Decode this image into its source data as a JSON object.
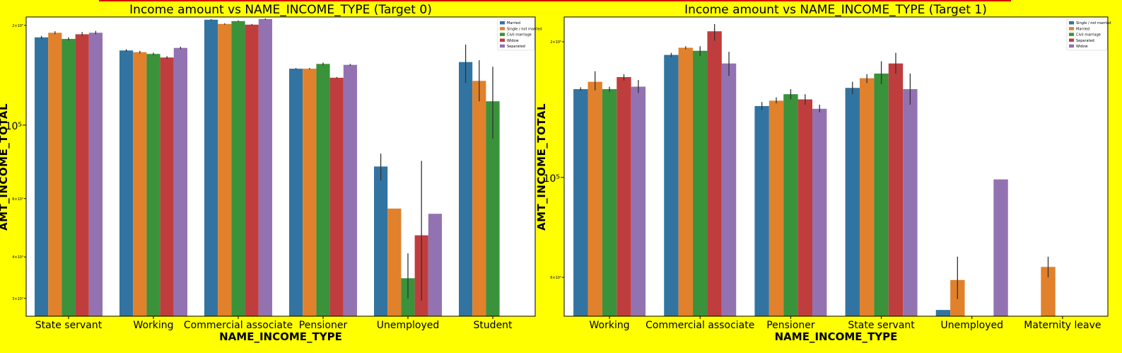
{
  "colors": {
    "palette": [
      "#3274a1",
      "#e1812c",
      "#3a923a",
      "#c03d3e",
      "#9372b2"
    ],
    "background": "#ffff00",
    "plot_bg": "#ffffff",
    "errbar": "#333333"
  },
  "chart_data": [
    {
      "type": "bar",
      "title": "Income amount vs NAME_INCOME_TYPE (Target 0)",
      "xlabel": "NAME_INCOME_TYPE",
      "ylabel": "AMT_INCOME_TOTAL",
      "yscale": "log",
      "ylim": [
        26500,
        212000
      ],
      "yticks": [
        {
          "value": 200000,
          "label": "2×10⁵",
          "major": false
        },
        {
          "value": 100000,
          "label": "10⁵",
          "major": true
        },
        {
          "value": 60000,
          "label": "6×10⁴",
          "major": false
        },
        {
          "value": 40000,
          "label": "4×10⁴",
          "major": false
        },
        {
          "value": 30000,
          "label": "3×10⁴",
          "major": false
        }
      ],
      "legend_position": "top-right",
      "grid": false,
      "categories": [
        "State servant",
        "Working",
        "Commercial associate",
        "Pensioner",
        "Unemployed",
        "Student"
      ],
      "series": [
        {
          "name": "Married",
          "values": [
            184000,
            168000,
            208000,
            148000,
            75000,
            155000
          ],
          "err": [
            [
              182000,
              186000
            ],
            [
              166500,
              169500
            ],
            [
              207000,
              209000
            ],
            [
              147300,
              148700
            ],
            [
              68000,
              82000
            ],
            [
              134000,
              175000
            ]
          ]
        },
        {
          "name": "Single / not married",
          "values": [
            190000,
            166000,
            202000,
            148000,
            56000,
            136000
          ],
          "err": [
            [
              188000,
              192000
            ],
            [
              164500,
              167500
            ],
            [
              201000,
              203000
            ],
            [
              147300,
              148700
            ],
            null,
            [
              118000,
              157000
            ]
          ]
        },
        {
          "name": "Civil marriage",
          "values": [
            182000,
            164000,
            206000,
            153000,
            34500,
            118000
          ],
          "err": [
            [
              180000,
              184000
            ],
            [
              162500,
              165500
            ],
            [
              205000,
              207000
            ],
            [
              151500,
              154500
            ],
            [
              30000,
              41000
            ],
            [
              91000,
              150000
            ]
          ]
        },
        {
          "name": "Widow",
          "values": [
            188000,
            160000,
            201000,
            139000,
            46500,
            null
          ],
          "err": [
            [
              186000,
              191000
            ],
            [
              158500,
              161500
            ],
            [
              200000,
              202000
            ],
            [
              138300,
              139700
            ],
            [
              29500,
              78000
            ],
            null
          ]
        },
        {
          "name": "Separated",
          "values": [
            190000,
            171000,
            209000,
            152000,
            54000,
            null
          ],
          "err": [
            [
              188000,
              192500
            ],
            [
              169500,
              172500
            ],
            [
              208000,
              210000
            ],
            [
              151000,
              153000
            ],
            null,
            null
          ]
        }
      ]
    },
    {
      "type": "bar",
      "title": "Income amount vs NAME_INCOME_TYPE (Target 1)",
      "xlabel": "NAME_INCOME_TYPE",
      "ylabel": "AMT_INCOME_TOTAL",
      "yscale": "log",
      "ylim": [
        49200,
        227000
      ],
      "yticks": [
        {
          "value": 200000,
          "label": "2×10⁵",
          "major": false
        },
        {
          "value": 100000,
          "label": "10⁵",
          "major": true
        },
        {
          "value": 60000,
          "label": "6×10⁴",
          "major": false
        }
      ],
      "legend_position": "top-right",
      "grid": false,
      "categories": [
        "Working",
        "Commercial associate",
        "Pensioner",
        "State servant",
        "Unemployed",
        "Maternity leave"
      ],
      "series": [
        {
          "name": "Single / not married",
          "values": [
            157000,
            187000,
            144000,
            158000,
            50800,
            null
          ],
          "err": [
            [
              155500,
              158500
            ],
            [
              185000,
              189000
            ],
            [
              141000,
              147000
            ],
            [
              153000,
              163000
            ],
            null,
            null
          ]
        },
        {
          "name": "Married",
          "values": [
            163000,
            194000,
            148000,
            166000,
            59200,
            63300
          ],
          "err": [
            [
              156000,
              172000
            ],
            [
              192500,
              195500
            ],
            [
              146000,
              150500
            ],
            [
              162000,
              169500
            ],
            [
              53700,
              66700
            ],
            [
              60000,
              66700
            ]
          ]
        },
        {
          "name": "Civil marriage",
          "values": [
            157000,
            191000,
            153000,
            170000,
            null,
            null
          ],
          "err": [
            [
              155000,
              159000
            ],
            [
              186000,
              195500
            ],
            [
              149000,
              157000
            ],
            [
              161000,
              181000
            ],
            null,
            null
          ]
        },
        {
          "name": "Separated",
          "values": [
            167000,
            211000,
            149000,
            179000,
            null,
            null
          ],
          "err": [
            [
              164000,
              169500
            ],
            [
              201000,
              219000
            ],
            [
              145000,
              153000
            ],
            [
              170000,
              189000
            ],
            null,
            null
          ]
        },
        {
          "name": "Widow",
          "values": [
            159000,
            179000,
            142000,
            157000,
            99000,
            null
          ],
          "err": [
            [
              154000,
              164500
            ],
            [
              168000,
              190000
            ],
            [
              139500,
              145000
            ],
            [
              145000,
              170000
            ],
            null,
            null
          ]
        }
      ]
    }
  ]
}
